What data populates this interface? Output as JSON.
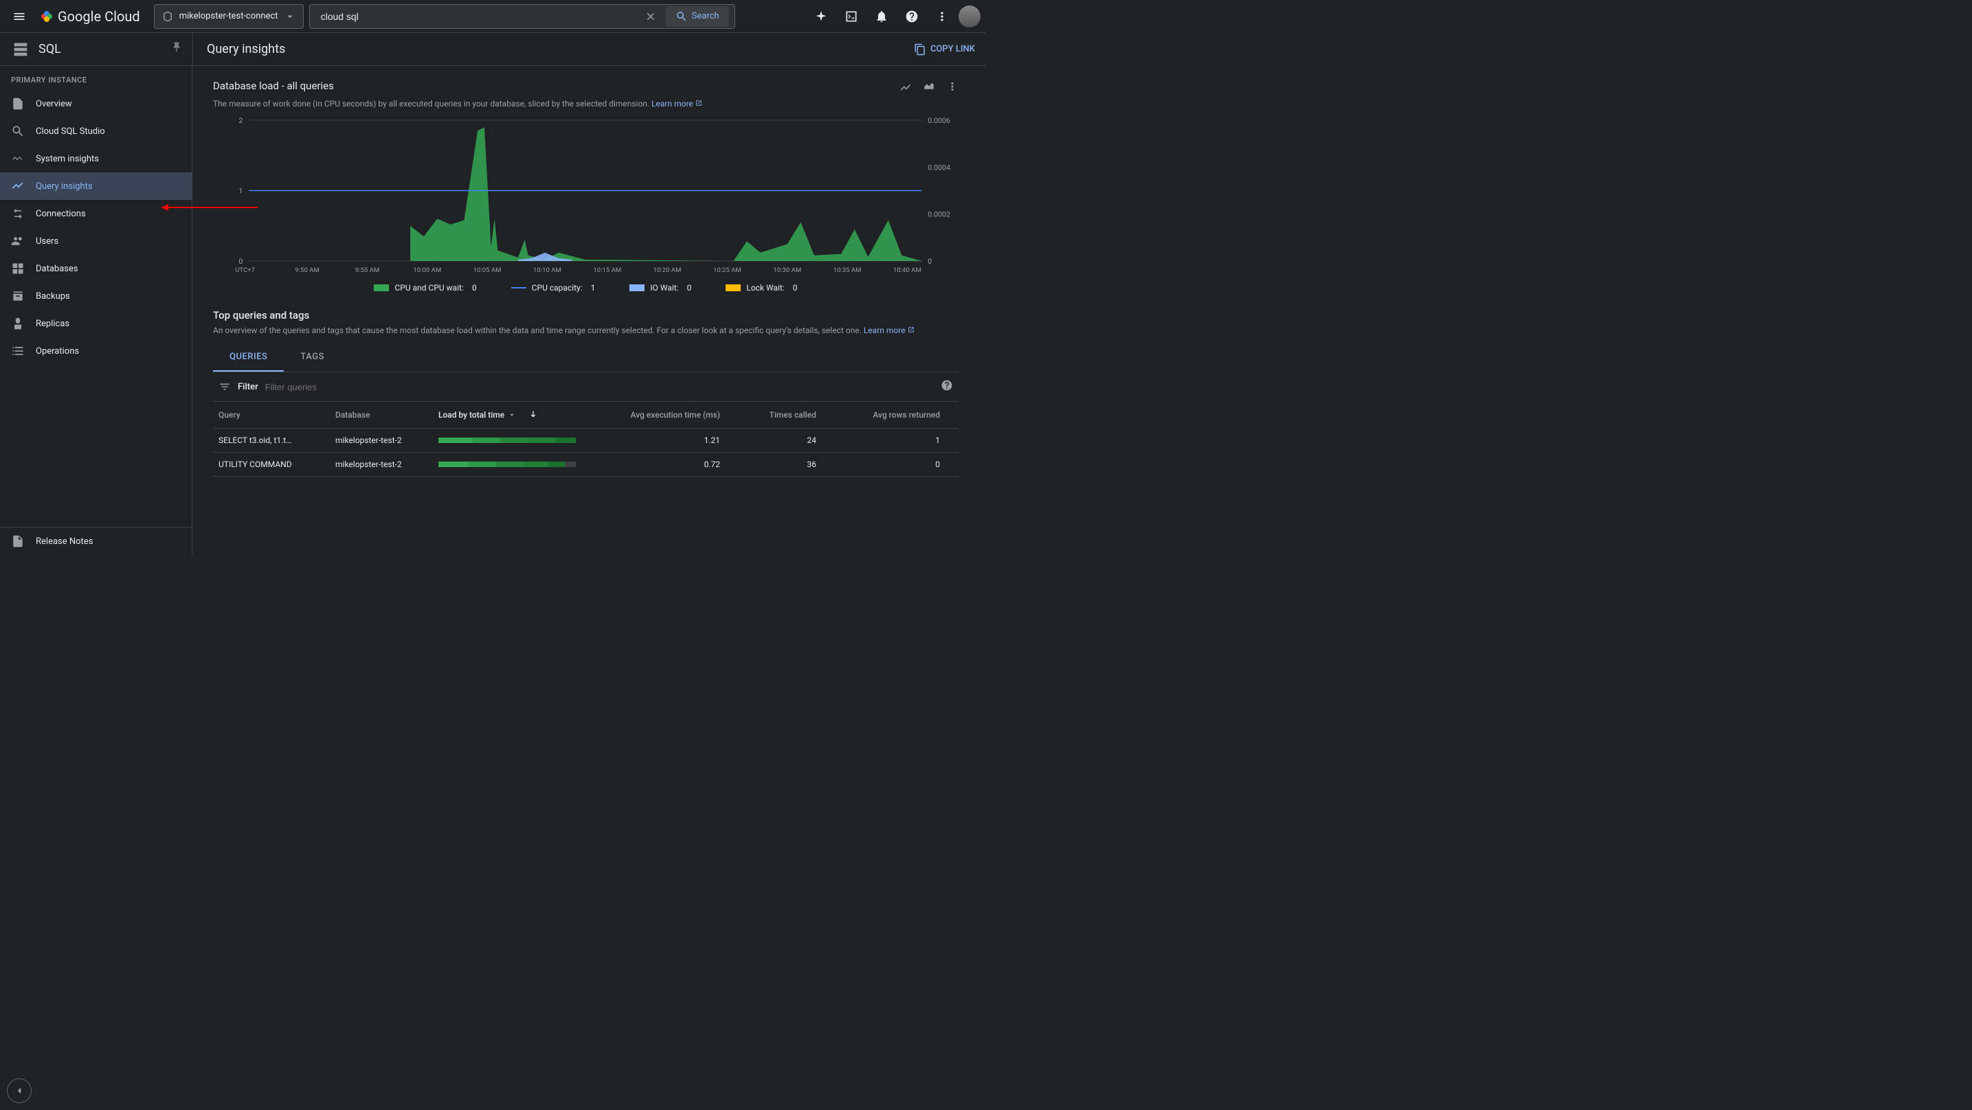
{
  "topbar": {
    "project": "mikelopster-test-connect",
    "search_value": "cloud sql",
    "search_button": "Search"
  },
  "subheader": {
    "product": "SQL",
    "page_title": "Query insights",
    "copy_link": "COPY LINK"
  },
  "sidebar": {
    "section_label": "PRIMARY INSTANCE",
    "items": [
      {
        "label": "Overview",
        "icon": "document"
      },
      {
        "label": "Cloud SQL Studio",
        "icon": "search"
      },
      {
        "label": "System insights",
        "icon": "waves"
      },
      {
        "label": "Query insights",
        "icon": "trend"
      },
      {
        "label": "Connections",
        "icon": "arrow-in"
      },
      {
        "label": "Users",
        "icon": "users"
      },
      {
        "label": "Databases",
        "icon": "grid"
      },
      {
        "label": "Backups",
        "icon": "archive"
      },
      {
        "label": "Replicas",
        "icon": "replica"
      },
      {
        "label": "Operations",
        "icon": "list"
      }
    ],
    "active_index": 3,
    "footer_item": "Release Notes"
  },
  "db_load": {
    "title": "Database load - all queries",
    "desc": "The measure of work done (in CPU seconds) by all executed queries in your database, sliced by the selected dimension. ",
    "learn_more": "Learn more",
    "yaxis_left": {
      "ticks": [
        "2",
        "1",
        "0"
      ],
      "label": "UTC+7"
    },
    "yaxis_right": {
      "ticks": [
        "0.0006",
        "0.0004",
        "0.0002",
        "0"
      ]
    },
    "xaxis_ticks": [
      "9:50 AM",
      "9:55 AM",
      "10:00 AM",
      "10:05 AM",
      "10:10 AM",
      "10:15 AM",
      "10:20 AM",
      "10:25 AM",
      "10:30 AM",
      "10:35 AM",
      "10:40 AM"
    ],
    "area": {
      "color": "#34a853",
      "points": [
        [
          0.24,
          0.0
        ],
        [
          0.24,
          0.5
        ],
        [
          0.26,
          0.35
        ],
        [
          0.28,
          0.6
        ],
        [
          0.3,
          0.52
        ],
        [
          0.32,
          0.58
        ],
        [
          0.34,
          1.85
        ],
        [
          0.35,
          1.9
        ],
        [
          0.36,
          0.2
        ],
        [
          0.365,
          0.6
        ],
        [
          0.37,
          0.15
        ],
        [
          0.4,
          0.05
        ],
        [
          0.41,
          0.3
        ],
        [
          0.415,
          0.08
        ],
        [
          0.44,
          0.02
        ],
        [
          0.46,
          0.12
        ],
        [
          0.5,
          0.02
        ],
        [
          0.72,
          0.0
        ],
        [
          0.74,
          0.28
        ],
        [
          0.76,
          0.12
        ],
        [
          0.8,
          0.24
        ],
        [
          0.82,
          0.55
        ],
        [
          0.84,
          0.08
        ],
        [
          0.88,
          0.1
        ],
        [
          0.9,
          0.45
        ],
        [
          0.92,
          0.06
        ],
        [
          0.95,
          0.58
        ],
        [
          0.97,
          0.08
        ],
        [
          1.0,
          0.0
        ]
      ]
    },
    "capacity_line": {
      "color": "#4285f4",
      "y": 1.0
    },
    "io_wait": {
      "color": "#8ab4f8",
      "points": [
        [
          0.4,
          0.02
        ],
        [
          0.42,
          0.04
        ],
        [
          0.44,
          0.12
        ],
        [
          0.46,
          0.04
        ],
        [
          0.48,
          0.02
        ]
      ]
    },
    "legend": [
      {
        "label": "CPU and CPU wait:",
        "value": "0",
        "color": "#34a853",
        "type": "area"
      },
      {
        "label": "CPU capacity:",
        "value": "1",
        "color": "#4285f4",
        "type": "line"
      },
      {
        "label": "IO Wait:",
        "value": "0",
        "color": "#8ab4f8",
        "type": "area"
      },
      {
        "label": "Lock Wait:",
        "value": "0",
        "color": "#fbbc04",
        "type": "area"
      }
    ]
  },
  "top_queries": {
    "title": "Top queries and tags",
    "desc": "An overview of the queries and tags that cause the most database load within the data and time range currently selected. For a closer look at a specific query's details, select one. ",
    "learn_more": "Learn more",
    "tabs": {
      "queries": "QUERIES",
      "tags": "TAGS"
    },
    "filter_label": "Filter",
    "filter_placeholder": "Filter queries",
    "columns": {
      "query": "Query",
      "database": "Database",
      "load": "Load by total time",
      "exec_time": "Avg execution time (ms)",
      "times_called": "Times called",
      "rows_returned": "Avg rows returned"
    },
    "rows": [
      {
        "query": "SELECT t3.oid, t1.t…",
        "database": "mikelopster-test-2",
        "load_segments": [
          {
            "c": "#34a853",
            "w": 25
          },
          {
            "c": "#2d9a47",
            "w": 20
          },
          {
            "c": "#26873c",
            "w": 20
          },
          {
            "c": "#208034",
            "w": 20
          },
          {
            "c": "#1a732d",
            "w": 15
          }
        ],
        "exec_time": "1.21",
        "times_called": "24",
        "rows_returned": "1"
      },
      {
        "query": "UTILITY COMMAND",
        "database": "mikelopster-test-2",
        "load_segments": [
          {
            "c": "#34a853",
            "w": 22
          },
          {
            "c": "#2d9a47",
            "w": 20
          },
          {
            "c": "#26873c",
            "w": 20
          },
          {
            "c": "#208034",
            "w": 18
          },
          {
            "c": "#1a732d",
            "w": 12
          },
          {
            "c": "#3c4043",
            "w": 8
          }
        ],
        "exec_time": "0.72",
        "times_called": "36",
        "rows_returned": "0"
      }
    ]
  },
  "colors": {
    "accent": "#8ab4f8",
    "bg": "#202124",
    "border": "#3c4043",
    "text_muted": "#9aa0a6"
  }
}
